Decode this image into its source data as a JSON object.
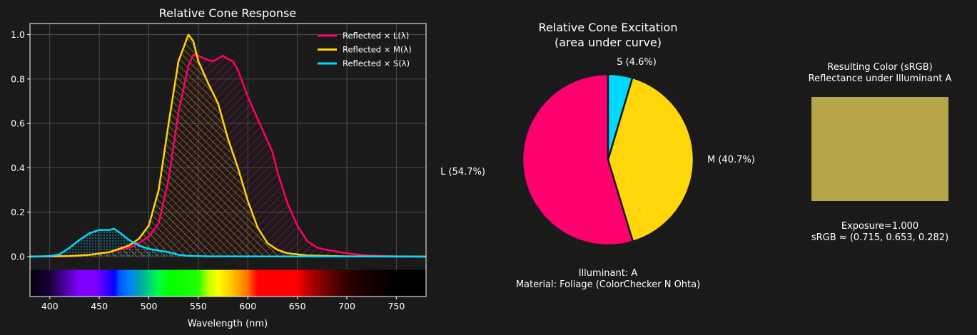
{
  "chart_data": [
    {
      "type": "line",
      "title": "Relative Cone Response",
      "xlabel": "Wavelength (nm)",
      "ylabel": "",
      "xlim": [
        380,
        780
      ],
      "ylim": [
        -0.18,
        1.05
      ],
      "xticks": [
        400,
        450,
        500,
        550,
        600,
        650,
        700,
        750
      ],
      "yticks": [
        0.0,
        0.2,
        0.4,
        0.6,
        0.8,
        1.0
      ],
      "ytick_labels": [
        "0.0",
        "0.2",
        "0.4",
        "0.6",
        "0.8",
        "1.0"
      ],
      "grid": true,
      "legend_placement": "top-right",
      "spectrum_strip": true,
      "series": [
        {
          "name": "Reflected × L(λ)",
          "color": "#ff0066",
          "hatch": "diagonal-forward",
          "x": [
            380,
            400,
            420,
            440,
            460,
            480,
            490,
            500,
            510,
            520,
            530,
            540,
            545,
            550,
            560,
            565,
            575,
            580,
            585,
            590,
            600,
            610,
            620,
            625,
            630,
            640,
            650,
            660,
            670,
            680,
            700,
            720,
            750,
            780
          ],
          "y": [
            0,
            0,
            0.002,
            0.008,
            0.02,
            0.04,
            0.06,
            0.09,
            0.15,
            0.35,
            0.65,
            0.86,
            0.91,
            0.905,
            0.885,
            0.88,
            0.905,
            0.89,
            0.88,
            0.84,
            0.72,
            0.62,
            0.52,
            0.47,
            0.38,
            0.24,
            0.14,
            0.07,
            0.04,
            0.03,
            0.015,
            0.005,
            0.001,
            0
          ]
        },
        {
          "name": "Reflected × M(λ)",
          "color": "#ffd20a",
          "hatch": "diagonal-back",
          "x": [
            380,
            420,
            440,
            460,
            480,
            490,
            500,
            510,
            520,
            530,
            540,
            545,
            550,
            560,
            570,
            580,
            590,
            600,
            610,
            620,
            630,
            640,
            660,
            700,
            780
          ],
          "y": [
            0,
            0.002,
            0.008,
            0.02,
            0.05,
            0.08,
            0.14,
            0.3,
            0.6,
            0.88,
            1.0,
            0.97,
            0.88,
            0.78,
            0.69,
            0.53,
            0.4,
            0.25,
            0.13,
            0.06,
            0.03,
            0.015,
            0.005,
            0.001,
            0
          ]
        },
        {
          "name": "Reflected × S(λ)",
          "color": "#00d8ff",
          "hatch": "dots",
          "x": [
            380,
            400,
            410,
            420,
            430,
            440,
            450,
            460,
            465,
            470,
            480,
            490,
            500,
            510,
            520,
            530,
            540,
            560,
            780
          ],
          "y": [
            0,
            0.002,
            0.01,
            0.04,
            0.075,
            0.105,
            0.12,
            0.12,
            0.125,
            0.11,
            0.075,
            0.05,
            0.035,
            0.027,
            0.02,
            0.008,
            0.003,
            0.001,
            0
          ]
        }
      ]
    },
    {
      "type": "pie",
      "title": "Relative Cone Excitation\n(area under curve)",
      "title_lines": [
        "Relative Cone Excitation",
        "(area under curve)"
      ],
      "categories": [
        "L",
        "M",
        "S"
      ],
      "values": [
        54.7,
        40.7,
        4.6
      ],
      "labels": [
        "L (54.7%)",
        "M (40.7%)",
        "S (4.6%)"
      ],
      "colors": [
        "#ff0070",
        "#ffd60a",
        "#00d8ff"
      ],
      "start_angle_deg": 90,
      "direction": "counterclockwise",
      "footer_lines": [
        "Illuminant: A",
        "Material: Foliage (ColorChecker N Ohta)"
      ]
    }
  ],
  "swatch": {
    "title_lines": [
      "Resulting Color (sRGB)",
      "Reflectance under Illuminant A"
    ],
    "color": "#b6a649",
    "srgb": [
      0.715,
      0.653,
      0.282
    ],
    "caption_lines": [
      "Exposure=1.000",
      "sRGB ≈ (0.715, 0.653, 0.282)"
    ]
  }
}
